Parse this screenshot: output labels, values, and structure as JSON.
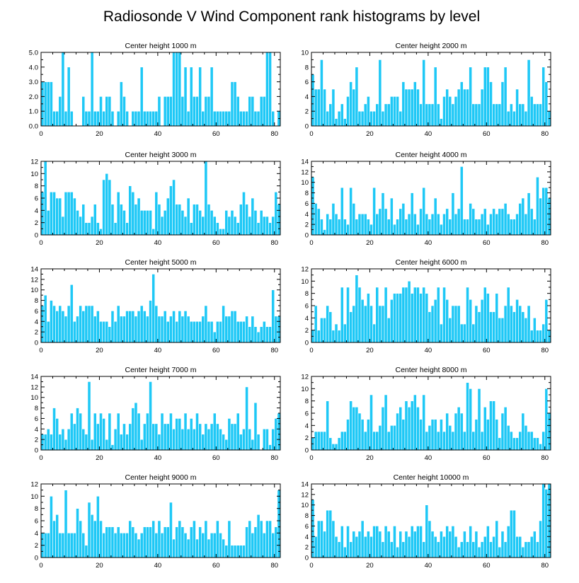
{
  "title": "Radiosonde V Wind Component rank histograms by level",
  "colors": {
    "bar": "#1ec8f6",
    "axis": "#000000",
    "bar_edge": "#ffffff"
  },
  "chart_data": [
    {
      "type": "bar",
      "title": "Center height 1000 m",
      "xlim": [
        0,
        82
      ],
      "ylim": [
        0,
        5
      ],
      "xticks": [
        0,
        20,
        40,
        60,
        80
      ],
      "yticks": [
        0,
        1,
        2,
        3,
        4,
        5
      ],
      "ytick_labels": [
        "0.0",
        "1.0",
        "2.0",
        "3.0",
        "4.0",
        "5.0"
      ],
      "values": [
        3,
        3,
        3,
        3,
        1,
        1,
        2,
        5,
        1,
        4,
        1,
        0,
        0,
        0,
        2,
        1,
        1,
        5,
        1,
        1,
        2,
        1,
        2,
        2,
        1,
        0,
        1,
        3,
        2,
        1,
        0,
        1,
        1,
        1,
        4,
        1,
        1,
        1,
        1,
        1,
        2,
        0,
        2,
        2,
        2,
        5,
        5,
        5,
        2,
        4,
        1,
        4,
        2,
        2,
        4,
        1,
        2,
        2,
        4,
        1,
        1,
        1,
        1,
        1,
        1,
        3,
        3,
        2,
        1,
        1,
        1,
        2,
        2,
        1,
        1,
        2,
        2,
        5,
        5,
        1,
        0,
        1
      ]
    },
    {
      "type": "bar",
      "title": "Center height 2000 m",
      "xlim": [
        0,
        82
      ],
      "ylim": [
        0,
        10
      ],
      "xticks": [
        0,
        20,
        40,
        60,
        80
      ],
      "yticks": [
        0,
        2,
        4,
        6,
        8,
        10
      ],
      "ytick_labels": [
        "0",
        "2",
        "4",
        "6",
        "8",
        "10"
      ],
      "values": [
        7,
        5,
        5,
        9,
        5,
        2,
        3,
        5,
        1,
        2,
        3,
        1,
        4,
        6,
        5,
        8,
        2,
        2,
        3,
        4,
        2,
        2,
        3,
        9,
        2,
        3,
        3,
        4,
        4,
        4,
        2,
        6,
        5,
        5,
        5,
        6,
        5,
        3,
        9,
        3,
        3,
        3,
        8,
        3,
        1,
        4,
        5,
        4,
        3,
        4,
        5,
        6,
        5,
        5,
        8,
        3,
        3,
        3,
        5,
        8,
        8,
        6,
        3,
        3,
        3,
        6,
        8,
        2,
        3,
        2,
        5,
        3,
        3,
        2,
        9,
        4,
        3,
        3,
        3,
        8,
        6,
        2
      ]
    },
    {
      "type": "bar",
      "title": "Center height 3000 m",
      "xlim": [
        0,
        82
      ],
      "ylim": [
        0,
        12
      ],
      "xticks": [
        0,
        20,
        40,
        60,
        80
      ],
      "yticks": [
        0,
        2,
        4,
        6,
        8,
        10,
        12
      ],
      "ytick_labels": [
        "0",
        "2",
        "4",
        "6",
        "8",
        "10",
        "12"
      ],
      "values": [
        7,
        12,
        4,
        7,
        7,
        6,
        6,
        3,
        7,
        7,
        7,
        6,
        4,
        3,
        5,
        2,
        2,
        3,
        5,
        2,
        1,
        9,
        10,
        9,
        5,
        2,
        7,
        5,
        4,
        2,
        8,
        7,
        5,
        6,
        4,
        4,
        4,
        4,
        1,
        7,
        5,
        3,
        4,
        6,
        8,
        9,
        5,
        5,
        4,
        3,
        6,
        2,
        5,
        5,
        4,
        3,
        12,
        5,
        4,
        3,
        2,
        1,
        1,
        4,
        3,
        4,
        3,
        2,
        5,
        7,
        5,
        3,
        6,
        4,
        2,
        4,
        3,
        3,
        2,
        3,
        7,
        5
      ]
    },
    {
      "type": "bar",
      "title": "Center height 4000 m",
      "xlim": [
        0,
        82
      ],
      "ylim": [
        0,
        14
      ],
      "xticks": [
        0,
        20,
        40,
        60,
        80
      ],
      "yticks": [
        0,
        2,
        4,
        6,
        8,
        10,
        12,
        14
      ],
      "ytick_labels": [
        "0",
        "2",
        "4",
        "6",
        "8",
        "10",
        "12",
        "14"
      ],
      "values": [
        11,
        6,
        5,
        3,
        1,
        4,
        3,
        6,
        4,
        3,
        9,
        3,
        2,
        9,
        6,
        3,
        4,
        4,
        4,
        3,
        2,
        9,
        4,
        5,
        8,
        5,
        3,
        7,
        2,
        3,
        5,
        6,
        3,
        4,
        8,
        4,
        2,
        5,
        9,
        4,
        3,
        4,
        7,
        4,
        2,
        4,
        5,
        3,
        8,
        4,
        5,
        13,
        3,
        3,
        6,
        5,
        3,
        3,
        4,
        5,
        2,
        4,
        5,
        4,
        5,
        5,
        6,
        4,
        3,
        3,
        4,
        6,
        7,
        4,
        8,
        5,
        3,
        11,
        7,
        9,
        9,
        7
      ]
    },
    {
      "type": "bar",
      "title": "Center height 5000 m",
      "xlim": [
        0,
        82
      ],
      "ylim": [
        0,
        14
      ],
      "xticks": [
        0,
        20,
        40,
        60,
        80
      ],
      "yticks": [
        0,
        2,
        4,
        6,
        8,
        10,
        12,
        14
      ],
      "ytick_labels": [
        "0",
        "2",
        "4",
        "6",
        "8",
        "10",
        "12",
        "14"
      ],
      "values": [
        7,
        9,
        4,
        8,
        7,
        6,
        7,
        6,
        5,
        7,
        11,
        4,
        5,
        7,
        6,
        7,
        7,
        7,
        5,
        6,
        4,
        4,
        4,
        3,
        6,
        4,
        7,
        5,
        5,
        6,
        6,
        6,
        5,
        6,
        7,
        6,
        5,
        8,
        13,
        7,
        5,
        5,
        6,
        4,
        5,
        6,
        4,
        6,
        5,
        6,
        5,
        4,
        4,
        4,
        4,
        5,
        7,
        4,
        4,
        2,
        4,
        4,
        7,
        5,
        5,
        6,
        6,
        4,
        4,
        4,
        5,
        3,
        5,
        3,
        2,
        3,
        4,
        3,
        3,
        10,
        5,
        5
      ]
    },
    {
      "type": "bar",
      "title": "Center height 6000 m",
      "xlim": [
        0,
        82
      ],
      "ylim": [
        0,
        12
      ],
      "xticks": [
        0,
        20,
        40,
        60,
        80
      ],
      "yticks": [
        0,
        2,
        4,
        6,
        8,
        10,
        12
      ],
      "ytick_labels": [
        "0",
        "2",
        "4",
        "6",
        "8",
        "10",
        "12"
      ],
      "values": [
        2,
        6,
        2,
        4,
        4,
        6,
        5,
        2,
        3,
        2,
        9,
        3,
        9,
        5,
        6,
        11,
        9,
        7,
        6,
        8,
        6,
        3,
        9,
        6,
        6,
        9,
        4,
        7,
        8,
        8,
        8,
        9,
        9,
        10,
        8,
        9,
        9,
        8,
        9,
        8,
        5,
        6,
        7,
        9,
        3,
        9,
        7,
        4,
        6,
        6,
        6,
        3,
        3,
        9,
        7,
        3,
        6,
        5,
        7,
        9,
        8,
        5,
        5,
        8,
        4,
        4,
        6,
        9,
        6,
        5,
        7,
        6,
        5,
        4,
        6,
        2,
        4,
        2,
        2,
        3,
        7,
        2
      ]
    },
    {
      "type": "bar",
      "title": "Center height 7000 m",
      "xlim": [
        0,
        82
      ],
      "ylim": [
        0,
        14
      ],
      "xticks": [
        0,
        20,
        40,
        60,
        80
      ],
      "yticks": [
        0,
        2,
        4,
        6,
        8,
        10,
        12,
        14
      ],
      "ytick_labels": [
        "0",
        "2",
        "4",
        "6",
        "8",
        "10",
        "12",
        "14"
      ],
      "values": [
        3,
        3,
        4,
        3,
        8,
        6,
        3,
        4,
        2,
        4,
        7,
        5,
        8,
        7,
        4,
        3,
        13,
        2,
        7,
        5,
        7,
        6,
        2,
        7,
        1,
        4,
        7,
        3,
        5,
        3,
        5,
        8,
        9,
        7,
        2,
        5,
        7,
        13,
        5,
        5,
        3,
        7,
        5,
        5,
        7,
        4,
        6,
        6,
        4,
        7,
        4,
        6,
        4,
        7,
        5,
        3,
        5,
        4,
        5,
        7,
        5,
        4,
        3,
        2,
        6,
        5,
        5,
        7,
        3,
        4,
        12,
        4,
        2,
        9,
        3,
        0,
        4,
        4,
        1,
        4,
        6,
        7
      ]
    },
    {
      "type": "bar",
      "title": "Center height 8000 m",
      "xlim": [
        0,
        82
      ],
      "ylim": [
        0,
        12
      ],
      "xticks": [
        0,
        20,
        40,
        60,
        80
      ],
      "yticks": [
        0,
        2,
        4,
        6,
        8,
        10,
        12
      ],
      "ytick_labels": [
        "0",
        "2",
        "4",
        "6",
        "8",
        "10",
        "12"
      ],
      "values": [
        2,
        3,
        3,
        3,
        3,
        8,
        2,
        1,
        1,
        2,
        3,
        3,
        5,
        8,
        7,
        7,
        6,
        5,
        3,
        5,
        9,
        3,
        3,
        4,
        7,
        9,
        3,
        4,
        4,
        6,
        7,
        5,
        8,
        7,
        8,
        9,
        7,
        5,
        9,
        3,
        4,
        5,
        5,
        3,
        5,
        3,
        6,
        4,
        3,
        6,
        7,
        6,
        3,
        11,
        10,
        3,
        5,
        10,
        3,
        7,
        5,
        8,
        8,
        5,
        2,
        6,
        7,
        4,
        3,
        2,
        2,
        3,
        6,
        4,
        3,
        3,
        2,
        2,
        1,
        3,
        10,
        6
      ]
    },
    {
      "type": "bar",
      "title": "Center height 9000 m",
      "xlim": [
        0,
        82
      ],
      "ylim": [
        0,
        12
      ],
      "xticks": [
        0,
        20,
        40,
        60,
        80
      ],
      "yticks": [
        0,
        2,
        4,
        6,
        8,
        10,
        12
      ],
      "ytick_labels": [
        "0",
        "2",
        "4",
        "6",
        "8",
        "10",
        "12"
      ],
      "values": [
        4,
        4,
        4,
        10,
        6,
        7,
        4,
        4,
        11,
        4,
        4,
        4,
        8,
        6,
        4,
        2,
        9,
        7,
        6,
        10,
        6,
        4,
        5,
        5,
        5,
        4,
        5,
        4,
        4,
        4,
        6,
        5,
        4,
        3,
        4,
        5,
        5,
        5,
        6,
        4,
        6,
        4,
        5,
        5,
        9,
        3,
        5,
        6,
        5,
        4,
        3,
        5,
        6,
        3,
        5,
        4,
        6,
        3,
        4,
        4,
        6,
        4,
        3,
        2,
        6,
        2,
        2,
        2,
        2,
        2,
        5,
        6,
        4,
        5,
        7,
        6,
        4,
        6,
        6,
        4,
        5,
        11
      ]
    },
    {
      "type": "bar",
      "title": "Center height 10000 m",
      "xlim": [
        0,
        82
      ],
      "ylim": [
        0,
        14
      ],
      "xticks": [
        0,
        20,
        40,
        60,
        80
      ],
      "yticks": [
        0,
        2,
        4,
        6,
        8,
        10,
        12,
        14
      ],
      "ytick_labels": [
        "0",
        "2",
        "4",
        "6",
        "8",
        "10",
        "12",
        "14"
      ],
      "values": [
        11,
        4,
        7,
        7,
        5,
        9,
        9,
        7,
        4,
        3,
        6,
        2,
        6,
        3,
        5,
        4,
        5,
        7,
        4,
        5,
        4,
        6,
        6,
        5,
        3,
        6,
        5,
        3,
        6,
        2,
        5,
        3,
        5,
        4,
        6,
        5,
        6,
        6,
        3,
        10,
        7,
        5,
        4,
        3,
        5,
        4,
        6,
        5,
        6,
        4,
        2,
        3,
        5,
        3,
        6,
        3,
        5,
        2,
        3,
        4,
        6,
        3,
        4,
        7,
        2,
        5,
        3,
        6,
        9,
        9,
        4,
        4,
        2,
        3,
        3,
        4,
        5,
        3,
        7,
        14,
        13,
        14
      ]
    }
  ]
}
